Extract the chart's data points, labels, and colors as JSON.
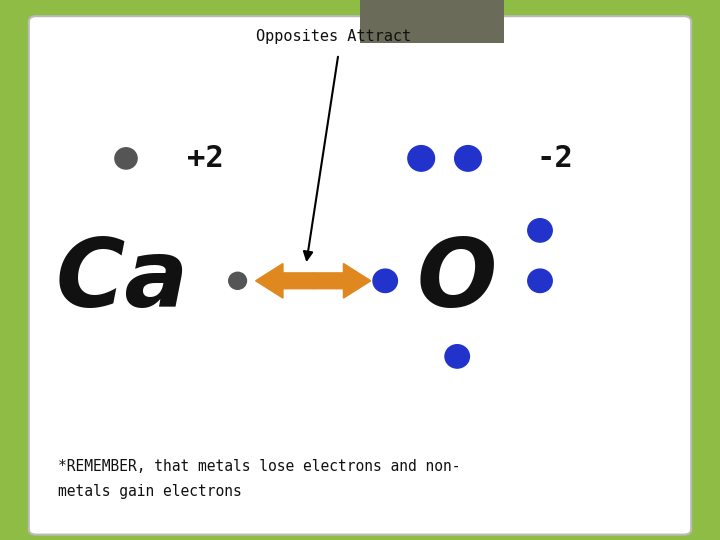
{
  "bg_outer": "#8fbc45",
  "bg_inner": "#ffffff",
  "bg_tab": "#6b6b5a",
  "title": "Opposites Attract",
  "ca_label": "Ca",
  "o_label": "O",
  "plus2": "+2",
  "minus2": "-2",
  "remember_text": "*REMEMBER, that metals lose electrons and non-\nmetals gain electrons",
  "dark_dot_color": "#555555",
  "blue_dot_color": "#2233cc",
  "arrow_color": "#e08820",
  "text_color": "#111111",
  "title_fontsize": 11,
  "ca_fontsize": 68,
  "charge_fontsize": 22,
  "remember_fontsize": 10.5,
  "xlim": [
    0,
    10
  ],
  "ylim": [
    0,
    7.5
  ]
}
